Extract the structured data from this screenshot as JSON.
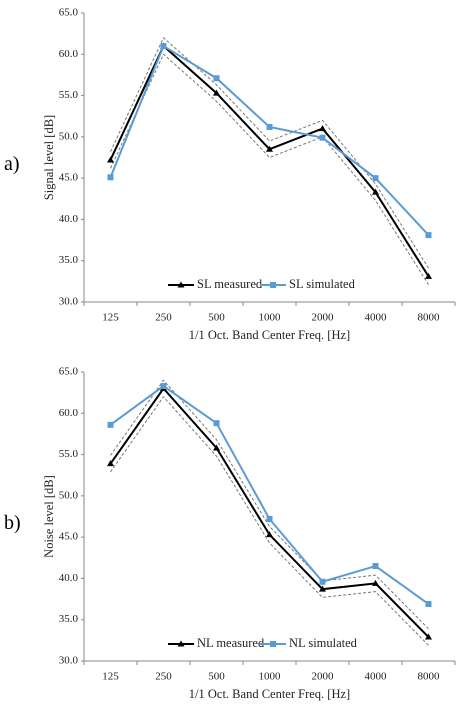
{
  "chart_data": [
    {
      "type": "line",
      "label": "a)",
      "ylabel": "Signal level [dB]",
      "xlabel": "1/1 Oct. Band Center Freq. [Hz]",
      "categories": [
        "125",
        "250",
        "500",
        "1000",
        "2000",
        "4000",
        "8000"
      ],
      "ylim": [
        30,
        65
      ],
      "yticks": [
        {
          "value": 30,
          "label": "30.0"
        },
        {
          "value": 35,
          "label": "35.0"
        },
        {
          "value": 40,
          "label": "40.0"
        },
        {
          "value": 45,
          "label": "45.0"
        },
        {
          "value": 50,
          "label": "50.0"
        },
        {
          "value": 55,
          "label": "55.0"
        },
        {
          "value": 60,
          "label": "60.0"
        },
        {
          "value": 65,
          "label": "65.0"
        }
      ],
      "legend": "bottom",
      "series": [
        {
          "color": "#777777",
          "dash": true,
          "values": [
            48.2,
            62.0,
            56.3,
            49.5,
            52.0,
            44.3,
            34.1
          ]
        },
        {
          "color": "#777777",
          "dash": true,
          "values": [
            46.2,
            60.0,
            54.3,
            47.5,
            50.0,
            42.3,
            32.1
          ]
        },
        {
          "name": "SL measured",
          "color": "#000000",
          "marker": "triangle",
          "values": [
            47.2,
            61.0,
            55.3,
            48.5,
            51.0,
            43.3,
            33.1
          ]
        },
        {
          "name": "SL simulated",
          "color": "#5b9bd5",
          "marker": "square",
          "values": [
            45.1,
            61.0,
            57.1,
            51.2,
            49.9,
            45.0,
            38.1
          ]
        }
      ]
    },
    {
      "type": "line",
      "label": "b)",
      "ylabel": "Noise level [dB]",
      "xlabel": "1/1 Oct. Band Center Freq. [Hz]",
      "categories": [
        "125",
        "250",
        "500",
        "1000",
        "2000",
        "4000",
        "8000"
      ],
      "ylim": [
        30,
        65
      ],
      "yticks": [
        {
          "value": 30,
          "label": "30.0"
        },
        {
          "value": 35,
          "label": "35.0"
        },
        {
          "value": 40,
          "label": "40.0"
        },
        {
          "value": 45,
          "label": "45.0"
        },
        {
          "value": 50,
          "label": "50.0"
        },
        {
          "value": 55,
          "label": "55.0"
        },
        {
          "value": 60,
          "label": "60.0"
        },
        {
          "value": 65,
          "label": "65.0"
        }
      ],
      "legend": "bottom",
      "series": [
        {
          "color": "#777777",
          "dash": true,
          "values": [
            54.9,
            64.0,
            56.8,
            46.3,
            39.7,
            40.4,
            33.9
          ]
        },
        {
          "color": "#777777",
          "dash": true,
          "values": [
            52.9,
            62.0,
            54.8,
            44.3,
            37.7,
            38.4,
            31.9
          ]
        },
        {
          "name": "NL measured",
          "color": "#000000",
          "marker": "triangle",
          "values": [
            53.9,
            63.0,
            55.8,
            45.3,
            38.7,
            39.4,
            32.9
          ]
        },
        {
          "name": "NL simulated",
          "color": "#5b9bd5",
          "marker": "square",
          "values": [
            58.6,
            63.3,
            58.8,
            47.2,
            39.6,
            41.5,
            36.9
          ]
        }
      ]
    }
  ]
}
